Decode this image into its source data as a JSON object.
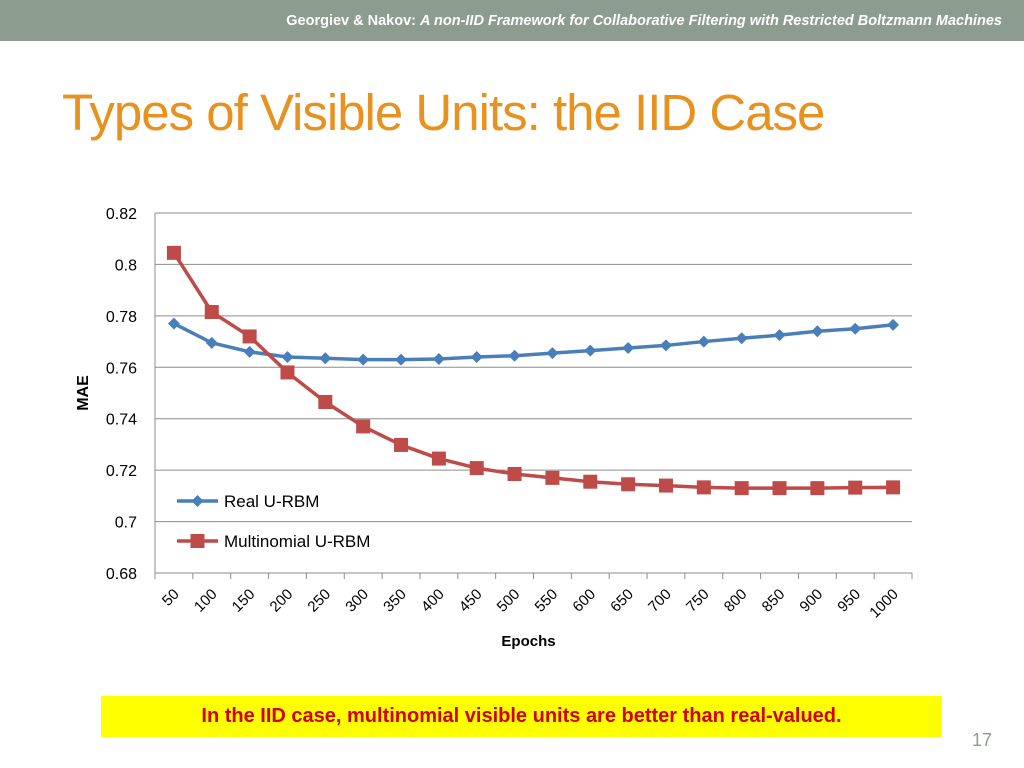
{
  "header": {
    "authors": "Georgiev & Nakov:",
    "paper_title": "A non-IID Framework for Collaborative Filtering with Restricted Boltzmann Machines"
  },
  "slide": {
    "title": "Types of Visible Units: the IID Case",
    "callout": "In the IID case, multinomial visible units are better than real-valued.",
    "page_number": "17"
  },
  "colors": {
    "header_bg": "#8c9d8f",
    "title": "#e8911e",
    "series_real": "#4a7ebb",
    "series_multinomial": "#be4b48",
    "callout_bg": "#ffff00",
    "callout_text": "#d40000"
  },
  "chart_data": {
    "type": "line",
    "xlabel": "Epochs",
    "ylabel": "MAE",
    "ylim": [
      0.68,
      0.82
    ],
    "y_ticks": [
      "0.82",
      "0.8",
      "0.78",
      "0.76",
      "0.74",
      "0.72",
      "0.7",
      "0.68"
    ],
    "categories": [
      "50",
      "100",
      "150",
      "200",
      "250",
      "300",
      "350",
      "400",
      "450",
      "500",
      "550",
      "600",
      "650",
      "700",
      "750",
      "800",
      "850",
      "900",
      "950",
      "1000"
    ],
    "grid": true,
    "legend_position": "bottom-left",
    "series": [
      {
        "name": "Real U-RBM",
        "marker": "diamond",
        "values": [
          0.777,
          0.7695,
          0.766,
          0.764,
          0.7635,
          0.763,
          0.763,
          0.7632,
          0.764,
          0.7645,
          0.7655,
          0.7665,
          0.7675,
          0.7685,
          0.77,
          0.7713,
          0.7725,
          0.774,
          0.775,
          0.7765
        ]
      },
      {
        "name": "Multinomial U-RBM",
        "marker": "square",
        "values": [
          0.8045,
          0.7815,
          0.772,
          0.758,
          0.7465,
          0.737,
          0.7298,
          0.7245,
          0.7208,
          0.7185,
          0.717,
          0.7155,
          0.7145,
          0.714,
          0.7133,
          0.713,
          0.713,
          0.713,
          0.7132,
          0.7133
        ]
      }
    ]
  }
}
